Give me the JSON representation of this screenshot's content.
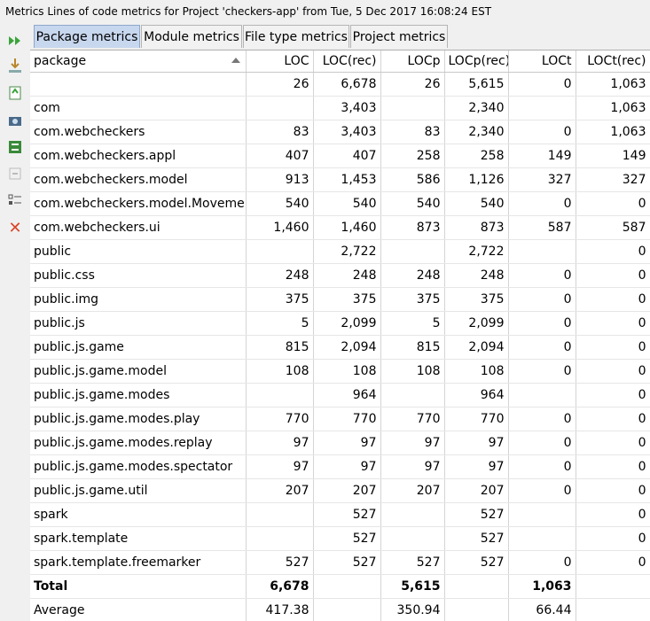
{
  "window": {
    "title": "Metrics Lines of code metrics for Project 'checkers-app' from Tue, 5 Dec 2017 16:08:24 EST"
  },
  "toolbar": {
    "icons": [
      "run-icon",
      "import-icon",
      "export-icon",
      "snapshot-icon",
      "compare-icon",
      "diff-icon",
      "settings-icon",
      "close-icon"
    ]
  },
  "tabs": [
    {
      "label": "Package metrics",
      "active": true
    },
    {
      "label": "Module metrics",
      "active": false
    },
    {
      "label": "File type metrics",
      "active": false
    },
    {
      "label": "Project metrics",
      "active": false
    }
  ],
  "table": {
    "columns": [
      "package",
      "LOC",
      "LOC(rec)",
      "LOCp",
      "LOCp(rec)",
      "LOCt",
      "LOCt(rec)"
    ],
    "rows": [
      [
        "",
        "26",
        "6,678",
        "26",
        "5,615",
        "0",
        "1,063"
      ],
      [
        "com",
        "",
        "3,403",
        "",
        "2,340",
        "",
        "1,063"
      ],
      [
        "com.webcheckers",
        "83",
        "3,403",
        "83",
        "2,340",
        "0",
        "1,063"
      ],
      [
        "com.webcheckers.appl",
        "407",
        "407",
        "258",
        "258",
        "149",
        "149"
      ],
      [
        "com.webcheckers.model",
        "913",
        "1,453",
        "586",
        "1,126",
        "327",
        "327"
      ],
      [
        "com.webcheckers.model.Movement",
        "540",
        "540",
        "540",
        "540",
        "0",
        "0"
      ],
      [
        "com.webcheckers.ui",
        "1,460",
        "1,460",
        "873",
        "873",
        "587",
        "587"
      ],
      [
        "public",
        "",
        "2,722",
        "",
        "2,722",
        "",
        "0"
      ],
      [
        "public.css",
        "248",
        "248",
        "248",
        "248",
        "0",
        "0"
      ],
      [
        "public.img",
        "375",
        "375",
        "375",
        "375",
        "0",
        "0"
      ],
      [
        "public.js",
        "5",
        "2,099",
        "5",
        "2,099",
        "0",
        "0"
      ],
      [
        "public.js.game",
        "815",
        "2,094",
        "815",
        "2,094",
        "0",
        "0"
      ],
      [
        "public.js.game.model",
        "108",
        "108",
        "108",
        "108",
        "0",
        "0"
      ],
      [
        "public.js.game.modes",
        "",
        "964",
        "",
        "964",
        "",
        "0"
      ],
      [
        "public.js.game.modes.play",
        "770",
        "770",
        "770",
        "770",
        "0",
        "0"
      ],
      [
        "public.js.game.modes.replay",
        "97",
        "97",
        "97",
        "97",
        "0",
        "0"
      ],
      [
        "public.js.game.modes.spectator",
        "97",
        "97",
        "97",
        "97",
        "0",
        "0"
      ],
      [
        "public.js.game.util",
        "207",
        "207",
        "207",
        "207",
        "0",
        "0"
      ],
      [
        "spark",
        "",
        "527",
        "",
        "527",
        "",
        "0"
      ],
      [
        "spark.template",
        "",
        "527",
        "",
        "527",
        "",
        "0"
      ],
      [
        "spark.template.freemarker",
        "527",
        "527",
        "527",
        "527",
        "0",
        "0"
      ]
    ],
    "total": [
      "Total",
      "6,678",
      "",
      "5,615",
      "",
      "1,063",
      ""
    ],
    "average": [
      "Average",
      "417.38",
      "",
      "350.94",
      "",
      "66.44",
      ""
    ]
  }
}
